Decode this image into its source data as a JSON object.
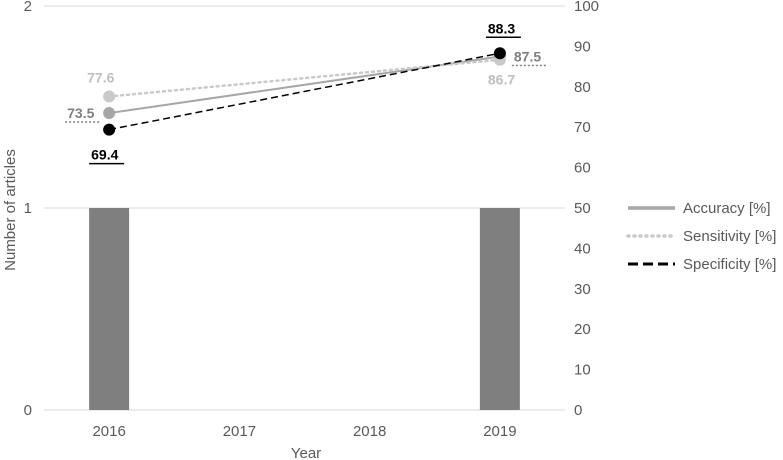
{
  "chart_data": {
    "type": "bar",
    "categories": [
      "2016",
      "2017",
      "2018",
      "2019"
    ],
    "xlabel": "Year",
    "ylabel": "Number of articles",
    "ylim": [
      0,
      2
    ],
    "y_ticks": [
      "0",
      "1",
      "2"
    ],
    "y2lim": [
      0,
      100
    ],
    "y2_ticks": [
      "0",
      "10",
      "20",
      "30",
      "40",
      "50",
      "60",
      "70",
      "80",
      "90",
      "100"
    ],
    "grid": true,
    "legend_position": "right",
    "bars": {
      "values": [
        1,
        0,
        0,
        1
      ],
      "color": "#7f7f7f"
    },
    "series": [
      {
        "name": "Accuracy [%]",
        "axis": "right",
        "style": "solid",
        "color": "#a6a6a6",
        "points": [
          {
            "x": "2016",
            "y": 73.5,
            "label": "73.5"
          },
          {
            "x": "2019",
            "y": 87.5,
            "label": "87.5"
          }
        ]
      },
      {
        "name": "Sensitivity [%]",
        "axis": "right",
        "style": "dotted",
        "color": "#c9c9c9",
        "points": [
          {
            "x": "2016",
            "y": 77.6,
            "label": "77.6"
          },
          {
            "x": "2019",
            "y": 86.7,
            "label": "86.7"
          }
        ]
      },
      {
        "name": "Specificity [%]",
        "axis": "right",
        "style": "dashed",
        "color": "#000000",
        "points": [
          {
            "x": "2016",
            "y": 69.4,
            "label": "69.4"
          },
          {
            "x": "2019",
            "y": 88.3,
            "label": "88.3"
          }
        ]
      }
    ]
  }
}
